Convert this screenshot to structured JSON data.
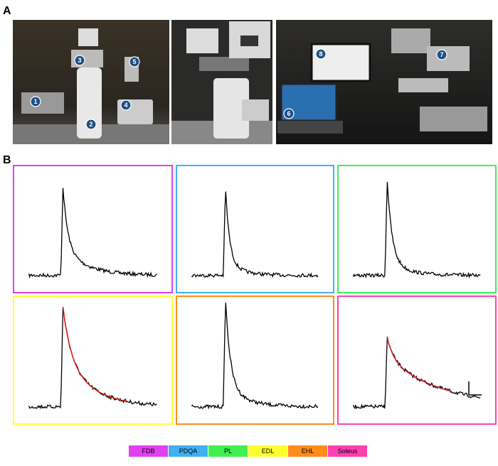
{
  "panels": {
    "a": "A",
    "b": "B"
  },
  "markers": [
    "1",
    "2",
    "3",
    "4",
    "5",
    "6",
    "7",
    "8"
  ],
  "legend": [
    {
      "name": "FDB",
      "color": "#e040f0"
    },
    {
      "name": "PDQA",
      "color": "#40b0f0"
    },
    {
      "name": "PL",
      "color": "#40f050"
    },
    {
      "name": "EDL",
      "color": "#ffff30"
    },
    {
      "name": "EHL",
      "color": "#ff8c1a"
    },
    {
      "name": "Soleus",
      "color": "#ff40b0"
    }
  ]
}
